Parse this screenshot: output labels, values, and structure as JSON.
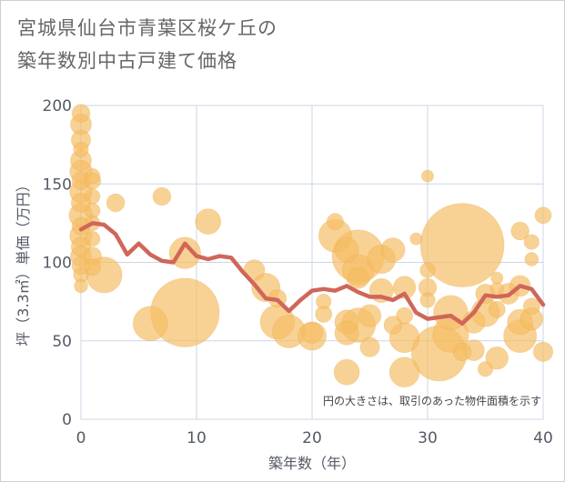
{
  "title_line1": "宮城県仙台市青葉区桜ケ丘の",
  "title_line2": "築年数別中古戸建て価格",
  "colors": {
    "bubble": "#f4bd63",
    "line": "#d0665a",
    "grid": "#cdd6e4",
    "tick_text": "#555a66"
  },
  "chart_data": {
    "type": "scatter",
    "xlabel": "築年数（年）",
    "ylabel": "坪（3.3㎡）単価（万円）",
    "xlim": [
      0,
      40
    ],
    "ylim": [
      0,
      200
    ],
    "x_ticks": [
      "0",
      "10",
      "20",
      "30",
      "40"
    ],
    "y_ticks": [
      "0",
      "50",
      "100",
      "150",
      "200"
    ],
    "grid": true,
    "note": "円の大きさは、取引のあった物件面積を示す",
    "series": [
      {
        "kind": "bubble",
        "points": [
          {
            "x": 0,
            "y": 195,
            "size": 1.2
          },
          {
            "x": 0,
            "y": 188,
            "size": 1.4
          },
          {
            "x": 0,
            "y": 178,
            "size": 1.3
          },
          {
            "x": 0,
            "y": 172,
            "size": 1.0
          },
          {
            "x": 0,
            "y": 165,
            "size": 1.4
          },
          {
            "x": 0,
            "y": 158,
            "size": 1.5
          },
          {
            "x": 0,
            "y": 152,
            "size": 1.2
          },
          {
            "x": 0,
            "y": 145,
            "size": 1.5
          },
          {
            "x": 0,
            "y": 138,
            "size": 1.3
          },
          {
            "x": 0,
            "y": 130,
            "size": 1.6
          },
          {
            "x": 0,
            "y": 123,
            "size": 1.2
          },
          {
            "x": 0,
            "y": 117,
            "size": 1.5
          },
          {
            "x": 0,
            "y": 110,
            "size": 1.3
          },
          {
            "x": 0,
            "y": 104,
            "size": 1.4
          },
          {
            "x": 0,
            "y": 98,
            "size": 1.2
          },
          {
            "x": 0,
            "y": 92,
            "size": 1.0
          },
          {
            "x": 0,
            "y": 85,
            "size": 0.9
          },
          {
            "x": 1,
            "y": 155,
            "size": 1.0
          },
          {
            "x": 1,
            "y": 152,
            "size": 1.1
          },
          {
            "x": 1,
            "y": 142,
            "size": 1.0
          },
          {
            "x": 1,
            "y": 133,
            "size": 1.0
          },
          {
            "x": 1,
            "y": 125,
            "size": 1.0
          },
          {
            "x": 1,
            "y": 115,
            "size": 1.0
          },
          {
            "x": 1,
            "y": 104,
            "size": 1.2
          },
          {
            "x": 1,
            "y": 97,
            "size": 1.1
          },
          {
            "x": 2,
            "y": 92,
            "size": 2.4
          },
          {
            "x": 3,
            "y": 138,
            "size": 1.2
          },
          {
            "x": 7,
            "y": 142,
            "size": 1.2
          },
          {
            "x": 9,
            "y": 106,
            "size": 2.1
          },
          {
            "x": 9,
            "y": 68,
            "size": 4.6
          },
          {
            "x": 6,
            "y": 61,
            "size": 2.3
          },
          {
            "x": 11,
            "y": 126,
            "size": 1.7
          },
          {
            "x": 15,
            "y": 95,
            "size": 1.4
          },
          {
            "x": 16,
            "y": 84,
            "size": 1.9
          },
          {
            "x": 17,
            "y": 77,
            "size": 1.2
          },
          {
            "x": 17,
            "y": 62,
            "size": 2.3
          },
          {
            "x": 18,
            "y": 56,
            "size": 2.2
          },
          {
            "x": 20,
            "y": 55,
            "size": 1.4
          },
          {
            "x": 20,
            "y": 53,
            "size": 1.9
          },
          {
            "x": 21,
            "y": 75,
            "size": 1.0
          },
          {
            "x": 21,
            "y": 67,
            "size": 1.1
          },
          {
            "x": 22,
            "y": 126,
            "size": 1.1
          },
          {
            "x": 22,
            "y": 117,
            "size": 2.2
          },
          {
            "x": 23,
            "y": 108,
            "size": 1.6
          },
          {
            "x": 23,
            "y": 62,
            "size": 1.6
          },
          {
            "x": 23,
            "y": 55,
            "size": 1.6
          },
          {
            "x": 23,
            "y": 30,
            "size": 1.7
          },
          {
            "x": 24,
            "y": 104,
            "size": 3.5
          },
          {
            "x": 24,
            "y": 95,
            "size": 2.1
          },
          {
            "x": 24,
            "y": 90,
            "size": 1.4
          },
          {
            "x": 24,
            "y": 60,
            "size": 2.3
          },
          {
            "x": 25,
            "y": 66,
            "size": 1.5
          },
          {
            "x": 25,
            "y": 46,
            "size": 1.3
          },
          {
            "x": 26,
            "y": 102,
            "size": 1.9
          },
          {
            "x": 26,
            "y": 82,
            "size": 1.6
          },
          {
            "x": 27,
            "y": 108,
            "size": 1.6
          },
          {
            "x": 27,
            "y": 60,
            "size": 1.2
          },
          {
            "x": 28,
            "y": 84,
            "size": 1.5
          },
          {
            "x": 28,
            "y": 66,
            "size": 1.1
          },
          {
            "x": 28,
            "y": 52,
            "size": 2.0
          },
          {
            "x": 28,
            "y": 30,
            "size": 2.0
          },
          {
            "x": 29,
            "y": 115,
            "size": 0.8
          },
          {
            "x": 30,
            "y": 155,
            "size": 0.8
          },
          {
            "x": 30,
            "y": 95,
            "size": 1.0
          },
          {
            "x": 30,
            "y": 84,
            "size": 1.2
          },
          {
            "x": 30,
            "y": 76,
            "size": 1.0
          },
          {
            "x": 31,
            "y": 42,
            "size": 3.7
          },
          {
            "x": 32,
            "y": 68,
            "size": 2.3
          },
          {
            "x": 32,
            "y": 54,
            "size": 2.4
          },
          {
            "x": 33,
            "y": 111,
            "size": 5.6
          },
          {
            "x": 33,
            "y": 43,
            "size": 1.2
          },
          {
            "x": 34,
            "y": 62,
            "size": 1.5
          },
          {
            "x": 34,
            "y": 44,
            "size": 1.4
          },
          {
            "x": 35,
            "y": 68,
            "size": 1.9
          },
          {
            "x": 35,
            "y": 32,
            "size": 1.0
          },
          {
            "x": 35,
            "y": 80,
            "size": 1.3
          },
          {
            "x": 36,
            "y": 90,
            "size": 0.8
          },
          {
            "x": 36,
            "y": 83,
            "size": 0.9
          },
          {
            "x": 36,
            "y": 70,
            "size": 1.1
          },
          {
            "x": 36,
            "y": 39,
            "size": 1.5
          },
          {
            "x": 37,
            "y": 80,
            "size": 1.4
          },
          {
            "x": 38,
            "y": 120,
            "size": 1.2
          },
          {
            "x": 38,
            "y": 85,
            "size": 1.4
          },
          {
            "x": 38,
            "y": 62,
            "size": 1.7
          },
          {
            "x": 38,
            "y": 53,
            "size": 2.2
          },
          {
            "x": 39,
            "y": 113,
            "size": 1.0
          },
          {
            "x": 39,
            "y": 102,
            "size": 0.9
          },
          {
            "x": 39,
            "y": 72,
            "size": 1.1
          },
          {
            "x": 39,
            "y": 64,
            "size": 1.5
          },
          {
            "x": 40,
            "y": 130,
            "size": 1.1
          },
          {
            "x": 40,
            "y": 43,
            "size": 1.3
          }
        ]
      },
      {
        "kind": "line",
        "points": [
          {
            "x": 0,
            "y": 121
          },
          {
            "x": 1,
            "y": 125
          },
          {
            "x": 2,
            "y": 124
          },
          {
            "x": 3,
            "y": 118
          },
          {
            "x": 4,
            "y": 105
          },
          {
            "x": 5,
            "y": 112
          },
          {
            "x": 6,
            "y": 105
          },
          {
            "x": 7,
            "y": 101
          },
          {
            "x": 8,
            "y": 100
          },
          {
            "x": 9,
            "y": 112
          },
          {
            "x": 10,
            "y": 104
          },
          {
            "x": 11,
            "y": 102
          },
          {
            "x": 12,
            "y": 104
          },
          {
            "x": 13,
            "y": 103
          },
          {
            "x": 14,
            "y": 94
          },
          {
            "x": 15,
            "y": 86
          },
          {
            "x": 16,
            "y": 77
          },
          {
            "x": 17,
            "y": 76
          },
          {
            "x": 18,
            "y": 69
          },
          {
            "x": 19,
            "y": 76
          },
          {
            "x": 20,
            "y": 82
          },
          {
            "x": 21,
            "y": 83
          },
          {
            "x": 22,
            "y": 82
          },
          {
            "x": 23,
            "y": 85
          },
          {
            "x": 24,
            "y": 81
          },
          {
            "x": 25,
            "y": 78
          },
          {
            "x": 26,
            "y": 78
          },
          {
            "x": 27,
            "y": 76
          },
          {
            "x": 28,
            "y": 80
          },
          {
            "x": 29,
            "y": 68
          },
          {
            "x": 30,
            "y": 64
          },
          {
            "x": 31,
            "y": 65
          },
          {
            "x": 32,
            "y": 66
          },
          {
            "x": 33,
            "y": 61
          },
          {
            "x": 34,
            "y": 68
          },
          {
            "x": 35,
            "y": 79
          },
          {
            "x": 36,
            "y": 78
          },
          {
            "x": 37,
            "y": 79
          },
          {
            "x": 38,
            "y": 85
          },
          {
            "x": 39,
            "y": 83
          },
          {
            "x": 40,
            "y": 73
          }
        ]
      }
    ]
  }
}
